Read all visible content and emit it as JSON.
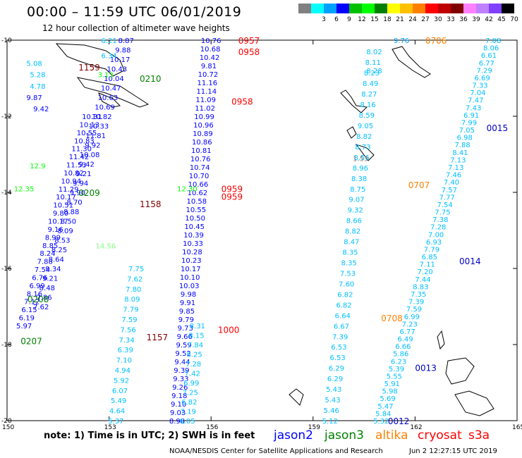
{
  "title": "00:00 – 11:59 UTC 06/01/2019",
  "subtitle": "12 hour collection of altimeter wave heights",
  "scale": {
    "unit": "(ft)",
    "colors": [
      "#808080",
      "#00ffff",
      "#00a0ff",
      "#0000ff",
      "#00c000",
      "#00ff00",
      "#008000",
      "#ffff00",
      "#ffc000",
      "#ff8000",
      "#ff0000",
      "#c00000",
      "#800000",
      "#ff80ff",
      "#c080ff",
      "#8040ff",
      "#000000"
    ],
    "labels": [
      "",
      "3",
      "6",
      "9",
      "12",
      "15",
      "18",
      "21",
      "24",
      "27",
      "30",
      "33",
      "36",
      "39",
      "42",
      "45",
      "70"
    ]
  },
  "axes": {
    "lat_labels": [
      "-10",
      "-12",
      "-14",
      "-16",
      "-18",
      "-20"
    ],
    "lon_labels": [
      "150",
      "153",
      "156",
      "159",
      "162",
      "165"
    ]
  },
  "tracks": [
    {
      "name": "t1",
      "color": "#0000ff",
      "anchors": [
        [
          156,
          -10
        ],
        [
          155,
          -20
        ]
      ],
      "values": [
        "10.76",
        "10.68",
        "10.42",
        "9.81",
        "10.72",
        "11.16",
        "11.14",
        "11.09",
        "11.02",
        "10.99",
        "10.96",
        "10.89",
        "10.86",
        "10.81",
        "10.76",
        "10.74",
        "10.70",
        "10.66",
        "10.62",
        "10.58",
        "10.55",
        "10.50",
        "10.45",
        "10.39",
        "10.33",
        "10.28",
        "10.23",
        "10.17",
        "10.10",
        "10.03",
        "9.98",
        "9.91",
        "9.85",
        "9.79",
        "9.73",
        "9.66",
        "9.59",
        "9.52",
        "9.44",
        "9.39",
        "9.33",
        "9.26",
        "9.18",
        "9.10",
        "9.03",
        "8.98"
      ]
    },
    {
      "name": "t2",
      "color": "#00c0ff",
      "anchors": [
        [
          155.6,
          -17.5
        ],
        [
          155.3,
          -20
        ]
      ],
      "values": [
        "8.31",
        "8.15",
        "7.84",
        "8.25",
        "7.28",
        "7.42",
        "6.99",
        "7.25",
        "6.82",
        "7.19",
        "6.05"
      ]
    },
    {
      "name": "t3",
      "color": "#0000ff",
      "anchors": [
        [
          153.5,
          -10
        ],
        [
          151,
          -17
        ]
      ],
      "values": [
        "8.87",
        "9.88",
        "10.17",
        "10.43",
        "10.04",
        "10.47",
        "10.63",
        "10.69",
        "10.82",
        "10.33",
        "11.81",
        "9.92",
        "10.08",
        "9.42",
        "9.21",
        "9.94",
        "9.90",
        "8.70",
        "8.88",
        "8.50",
        "8.09",
        "8.53",
        "8.25",
        "8.64",
        "9.34",
        "9.21",
        "8.48",
        "7.86",
        "7.62"
      ]
    },
    {
      "name": "t4",
      "color": "#0000ff",
      "anchors": [
        [
          152.5,
          -12
        ],
        [
          150.5,
          -17.5
        ]
      ],
      "values": [
        "10.31",
        "10.13",
        "10.55",
        "10.83",
        "11.30",
        "11.42",
        "11.53",
        "10.82",
        "10.94",
        "11.29",
        "10.17",
        "10.51",
        "9.80",
        "10.17",
        "9.16",
        "8.99",
        "8.85",
        "8.24",
        "7.88",
        "7.54",
        "6.76",
        "6.99",
        "8.16",
        "7.12",
        "6.15",
        "6.19",
        "5.97"
      ]
    },
    {
      "name": "t5",
      "color": "#00c0ff",
      "anchors": [
        [
          153.8,
          -16
        ],
        [
          153.2,
          -20
        ]
      ],
      "values": [
        "7.75",
        "7.62",
        "7.80",
        "8.09",
        "7.79",
        "7.59",
        "7.56",
        "7.34",
        "6.39",
        "7.10",
        "4.94",
        "5.92",
        "6.07",
        "5.49",
        "4.64",
        "5.37"
      ]
    },
    {
      "name": "t6",
      "color": "#00c0ff",
      "anchors": [
        [
          160.8,
          -10.3
        ],
        [
          159.5,
          -20
        ]
      ],
      "values": [
        "8.02",
        "8.11",
        "8.23",
        "8.49",
        "8.27",
        "8.16",
        "8.59",
        "9.05",
        "8.82",
        "8.73",
        "8.56",
        "8.96",
        "8.38",
        "8.75",
        "9.07",
        "9.32",
        "8.66",
        "8.82",
        "8.47",
        "8.35",
        "8.35",
        "7.53",
        "7.60",
        "6.82",
        "6.82",
        "6.64",
        "6.67",
        "7.39",
        "6.53",
        "6.53",
        "6.29",
        "6.29",
        "5.43",
        "5.43",
        "5.46",
        "5.12"
      ]
    },
    {
      "name": "t7",
      "color": "#00c0ff",
      "anchors": [
        [
          164.3,
          -10
        ],
        [
          161,
          -20
        ]
      ],
      "values": [
        "7.08",
        "8.06",
        "6.61",
        "6.77",
        "7.29",
        "6.69",
        "7.33",
        "7.04",
        "7.47",
        "7.43",
        "6.91",
        "7.99",
        "7.05",
        "6.98",
        "7.88",
        "8.41",
        "7.13",
        "7.13",
        "7.46",
        "7.40",
        "7.57",
        "7.77",
        "7.54",
        "7.75",
        "7.38",
        "7.28",
        "7.00",
        "6.93",
        "7.79",
        "6.85",
        "7.11",
        "7.20",
        "7.44",
        "8.83",
        "7.35",
        "7.39",
        "7.59",
        "6.99",
        "7.23",
        "6.77",
        "6.49",
        "6.66",
        "5.86",
        "6.23",
        "5.39",
        "5.55",
        "5.91",
        "5.98",
        "5.69",
        "5.47",
        "5.84",
        "5.32"
      ]
    }
  ],
  "isolated_values": [
    {
      "text": "6.21",
      "lon": 153.0,
      "lat": -10,
      "color": "#00c0ff"
    },
    {
      "text": "6.34",
      "lon": 153.0,
      "lat": -10.4,
      "color": "#00c0ff"
    },
    {
      "text": "5.08",
      "lon": 150.8,
      "lat": -10.6,
      "color": "#00c0ff"
    },
    {
      "text": "5.28",
      "lon": 150.9,
      "lat": -10.9,
      "color": "#00c0ff"
    },
    {
      "text": "4.78",
      "lon": 150.9,
      "lat": -11.2,
      "color": "#00c0ff"
    },
    {
      "text": "9.87",
      "lon": 150.8,
      "lat": -11.5,
      "color": "#0000ff"
    },
    {
      "text": "9.42",
      "lon": 151.0,
      "lat": -11.8,
      "color": "#0000ff"
    },
    {
      "text": "3.13",
      "lon": 152.9,
      "lat": -10.9,
      "color": "#00ff00"
    },
    {
      "text": "12.35",
      "lon": 150.5,
      "lat": -13.9,
      "color": "#00ff00"
    },
    {
      "text": "12.9",
      "lon": 150.9,
      "lat": -13.3,
      "color": "#00ff00"
    },
    {
      "text": "14.56",
      "lon": 152.9,
      "lat": -15.4,
      "color": "#80ff80"
    },
    {
      "text": "12.30",
      "lon": 155.3,
      "lat": -13.9,
      "color": "#00ff00"
    },
    {
      "text": "1.53",
      "lon": 160.4,
      "lat": -13.1,
      "color": "#808080"
    },
    {
      "text": "9.76",
      "lon": 161.6,
      "lat": -10,
      "color": "#00a0ff"
    },
    {
      "text": "8.28",
      "lon": 160.8,
      "lat": -10.8,
      "color": "#00c0ff"
    }
  ],
  "time_labels": [
    {
      "text": "0957",
      "lon": 156.8,
      "lat": -10,
      "color": "#ff0000"
    },
    {
      "text": "0958",
      "lon": 156.8,
      "lat": -10.3,
      "color": "#ff0000"
    },
    {
      "text": "0958",
      "lon": 156.6,
      "lat": -11.6,
      "color": "#ff0000"
    },
    {
      "text": "0959",
      "lon": 156.3,
      "lat": -13.9,
      "color": "#ff0000"
    },
    {
      "text": "0959",
      "lon": 156.3,
      "lat": -14.1,
      "color": "#ff0000"
    },
    {
      "text": "1000",
      "lon": 156.2,
      "lat": -17.6,
      "color": "#ff0000"
    },
    {
      "text": "1159",
      "lon": 152.1,
      "lat": -10.7,
      "color": "#800000"
    },
    {
      "text": "0210",
      "lon": 153.9,
      "lat": -11.0,
      "color": "#008000"
    },
    {
      "text": "0209",
      "lon": 152.1,
      "lat": -14.0,
      "color": "#008000"
    },
    {
      "text": "1158",
      "lon": 153.9,
      "lat": -14.3,
      "color": "#800000"
    },
    {
      "text": "0208",
      "lon": 150.6,
      "lat": -16.8,
      "color": "#008000"
    },
    {
      "text": "0207",
      "lon": 150.4,
      "lat": -17.9,
      "color": "#008000"
    },
    {
      "text": "1157",
      "lon": 154.1,
      "lat": -17.8,
      "color": "#800000"
    },
    {
      "text": "0706",
      "lon": 162.3,
      "lat": -10,
      "color": "#ff8000"
    },
    {
      "text": "0707",
      "lon": 161.8,
      "lat": -13.8,
      "color": "#ff8000"
    },
    {
      "text": "0708",
      "lon": 161.0,
      "lat": -17.3,
      "color": "#ff8000"
    },
    {
      "text": "0015",
      "lon": 164.1,
      "lat": -12.3,
      "color": "#0000c0"
    },
    {
      "text": "0014",
      "lon": 163.3,
      "lat": -15.8,
      "color": "#0000c0"
    },
    {
      "text": "0013",
      "lon": 162.0,
      "lat": -18.6,
      "color": "#0000c0"
    },
    {
      "text": "0012",
      "lon": 161.2,
      "lat": -20,
      "color": "#0000c0"
    }
  ],
  "note": "note: 1) Time is in UTC; 2) SWH is in feet",
  "legend": [
    {
      "label": "jason2",
      "color": "#0000ff"
    },
    {
      "label": "jason3",
      "color": "#008000"
    },
    {
      "label": "altika",
      "color": "#ff8000"
    },
    {
      "label": "cryosat",
      "color": "#ff0000"
    },
    {
      "label": "s3a",
      "color": "#ff0000"
    }
  ],
  "credit": "NOAA/NESDIS Center for Satellite Applications and Research",
  "stamp": "Jun  2 12:27:15 UTC 2019"
}
